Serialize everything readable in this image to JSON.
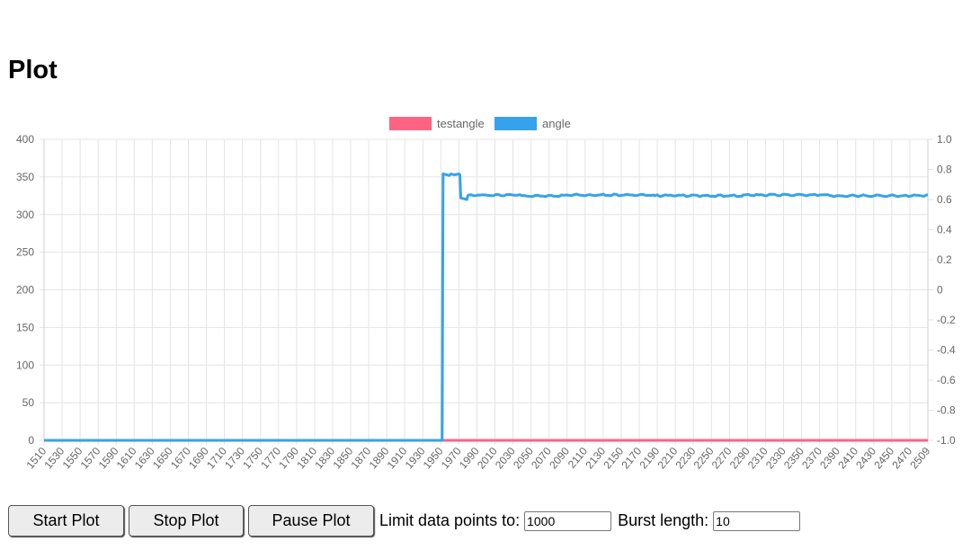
{
  "page": {
    "title": "Plot"
  },
  "chart_data": {
    "type": "line",
    "legend": [
      "testangle",
      "angle"
    ],
    "legend_position": "top-center",
    "colors": {
      "testangle": "#ff6384",
      "angle": "#36a2eb",
      "grid": "#e4e4e4",
      "tick_text": "#666666"
    },
    "grid": true,
    "x_range": [
      1510,
      2509
    ],
    "x_tick_labels": [
      "1510",
      "1530",
      "1550",
      "1570",
      "1590",
      "1610",
      "1630",
      "1650",
      "1670",
      "1690",
      "1710",
      "1730",
      "1750",
      "1770",
      "1790",
      "1810",
      "1830",
      "1850",
      "1870",
      "1890",
      "1910",
      "1930",
      "1950",
      "1970",
      "1990",
      "2010",
      "2030",
      "2050",
      "2070",
      "2090",
      "2110",
      "2130",
      "2150",
      "2170",
      "2190",
      "2210",
      "2230",
      "2250",
      "2270",
      "2290",
      "2310",
      "2330",
      "2350",
      "2370",
      "2390",
      "2410",
      "2430",
      "2450",
      "2470",
      "2509"
    ],
    "y_left": {
      "range": [
        0,
        400
      ],
      "ticks": [
        "0",
        "50",
        "100",
        "150",
        "200",
        "250",
        "300",
        "350",
        "400"
      ]
    },
    "y_right": {
      "range": [
        -1.0,
        1.0
      ],
      "ticks": [
        "-1.0",
        "-0.8",
        "-0.6",
        "-0.4",
        "-0.2",
        "0",
        "0.2",
        "0.4",
        "0.6",
        "0.8",
        "1.0"
      ]
    },
    "series": [
      {
        "name": "testangle",
        "axis": "left",
        "x": [
          1510,
          2509
        ],
        "y": [
          0,
          0
        ]
      },
      {
        "name": "angle",
        "axis": "left",
        "x": [
          1510,
          1959,
          1960,
          1961,
          1965,
          1970,
          1975,
          1979,
          1980,
          1981,
          1985,
          1988,
          1989,
          1990,
          2000,
          2050,
          2100,
          2200,
          2300,
          2400,
          2509
        ],
        "y": [
          0,
          0,
          0,
          354,
          353,
          354,
          353,
          354,
          353,
          322,
          321,
          320,
          325,
          326,
          326,
          325,
          326,
          325,
          326,
          325,
          326
        ]
      }
    ]
  },
  "controls": {
    "start_label": "Start Plot",
    "stop_label": "Stop Plot",
    "pause_label": "Pause Plot",
    "limit_label": "Limit data points to:",
    "limit_value": "1000",
    "burst_label": "Burst length:",
    "burst_value": "10"
  }
}
